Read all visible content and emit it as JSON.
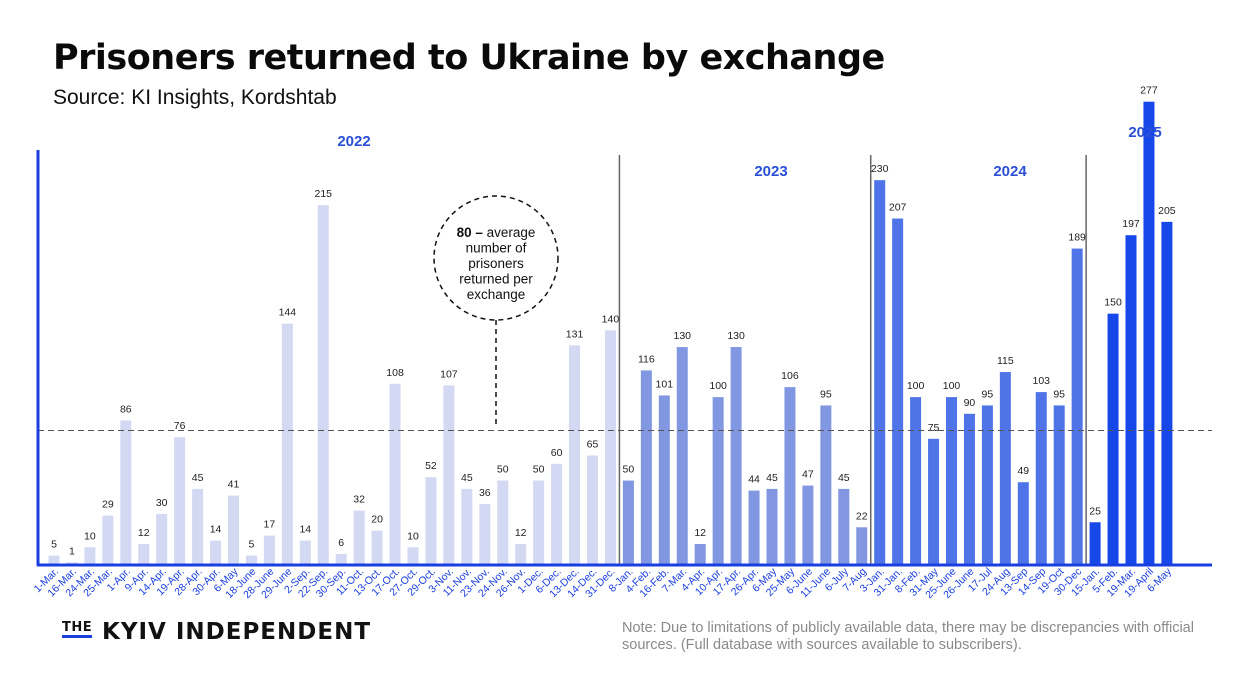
{
  "header": {
    "title": "Prisoners returned to Ukraine by exchange",
    "source": "Source: KI Insights, Kordshtab"
  },
  "footer": {
    "brand_prefix": "THE",
    "brand_name": "KYIV INDEPENDENT",
    "note": "Note: Due to limitations of publicly available data, there may be discrepancies with official sources. (Full database with sources available to subscribers)."
  },
  "chart_data": {
    "type": "bar",
    "title": "Prisoners returned to Ukraine by exchange",
    "ylim": [
      0,
      290
    ],
    "average": 80,
    "annotation": {
      "value": "80",
      "dash": " – ",
      "lines": [
        "average",
        "number of",
        "prisoners",
        "returned per",
        "exchange"
      ]
    },
    "colors": {
      "2022": "#d3d8f3",
      "2023": "#8197e2",
      "2024": "#4e74e8",
      "2025": "#1647e8",
      "axis": "#1a3fe0",
      "year_label": "#2b4fd6",
      "separator": "#666666",
      "avg_line": "#555555"
    },
    "year_labels": [
      "2022",
      "2023",
      "2024",
      "2025"
    ],
    "series": [
      {
        "name": "2022",
        "categories": [
          "1-Mar.",
          "16-Mar.",
          "24-Mar.",
          "25-Mar.",
          "1-Apr.",
          "9-Apr.",
          "14-Apr.",
          "19-Apr.",
          "28-Apr.",
          "30-Apr.",
          "6-May",
          "18-June",
          "28-June",
          "29-June",
          "2-Sep.",
          "22-Sep.",
          "30-Sep.",
          "11-Oct.",
          "13-Oct.",
          "17-Oct.",
          "27-Oct.",
          "29-Oct.",
          "3-Nov.",
          "11-Nov.",
          "23-Nov.",
          "24-Nov.",
          "26-Nov.",
          "1-Dec.",
          "6-Dec.",
          "13-Dec.",
          "14-Dec.",
          "31-Dec."
        ],
        "values": [
          5,
          1,
          10,
          29,
          86,
          12,
          30,
          76,
          45,
          14,
          41,
          5,
          17,
          144,
          14,
          215,
          6,
          32,
          20,
          108,
          10,
          52,
          107,
          45,
          36,
          50,
          12,
          50,
          60,
          131,
          65,
          140
        ]
      },
      {
        "name": "2023",
        "categories": [
          "8-Jan.",
          "4-Feb.",
          "16-Feb.",
          "7-Mar.",
          "4-Apr.",
          "10-Apr.",
          "17-Apr.",
          "26-Apr.",
          "6-May",
          "25-May",
          "6-June",
          "11-June",
          "6-July",
          "7-Aug"
        ],
        "values": [
          50,
          116,
          101,
          130,
          12,
          100,
          130,
          44,
          45,
          106,
          47,
          95,
          45,
          22
        ]
      },
      {
        "name": "2024",
        "categories": [
          "3-Jan.",
          "31-Jan.",
          "8-Feb.",
          "31-May",
          "25-June",
          "26-June",
          "17-Jul",
          "24-Aug",
          "13-Sep",
          "14-Sep",
          "19-Oct",
          "30-Dec"
        ],
        "values": [
          230,
          207,
          100,
          75,
          100,
          90,
          95,
          115,
          49,
          103,
          95,
          189
        ]
      },
      {
        "name": "2025",
        "categories": [
          "15-Jan.",
          "5-Feb.",
          "19-Mar.",
          "19-April",
          "6-May"
        ],
        "values": [
          25,
          150,
          197,
          277,
          205
        ]
      }
    ]
  }
}
